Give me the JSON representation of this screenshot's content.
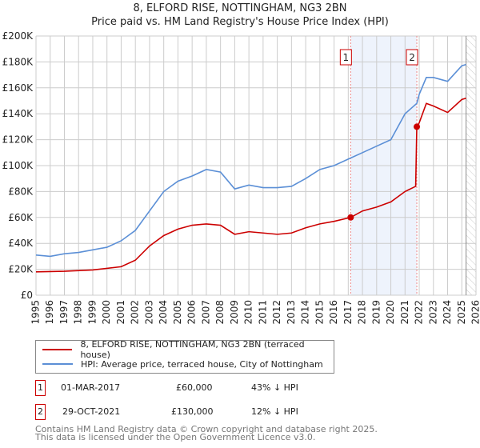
{
  "title_line1": "8, ELFORD RISE, NOTTINGHAM, NG3 2BN",
  "title_line2": "Price paid vs. HM Land Registry's House Price Index (HPI)",
  "chart_data": {
    "type": "line",
    "xlim": [
      1995,
      2026
    ],
    "ylim": [
      0,
      200000
    ],
    "x_ticks": [
      "1995",
      "1996",
      "1997",
      "1998",
      "1999",
      "2000",
      "2001",
      "2002",
      "2003",
      "2004",
      "2005",
      "2006",
      "2007",
      "2008",
      "2009",
      "2010",
      "2011",
      "2012",
      "2013",
      "2014",
      "2015",
      "2016",
      "2017",
      "2018",
      "2019",
      "2020",
      "2021",
      "2022",
      "2023",
      "2024",
      "2025",
      "2026"
    ],
    "y_ticks": [
      {
        "v": 0,
        "label": "£0"
      },
      {
        "v": 20000,
        "label": "£20K"
      },
      {
        "v": 40000,
        "label": "£40K"
      },
      {
        "v": 60000,
        "label": "£60K"
      },
      {
        "v": 80000,
        "label": "£80K"
      },
      {
        "v": 100000,
        "label": "£100K"
      },
      {
        "v": 120000,
        "label": "£120K"
      },
      {
        "v": 140000,
        "label": "£140K"
      },
      {
        "v": 160000,
        "label": "£160K"
      },
      {
        "v": 180000,
        "label": "£180K"
      },
      {
        "v": 200000,
        "label": "£200K"
      }
    ],
    "grid": true,
    "series": [
      {
        "name": "8, ELFORD RISE, NOTTINGHAM, NG3 2BN (terraced house)",
        "color": "#cc0000",
        "x": [
          1995,
          1997,
          1999,
          2001,
          2002,
          2003,
          2004,
          2005,
          2006,
          2007,
          2008,
          2009,
          2010,
          2011,
          2012,
          2013,
          2014,
          2015,
          2016,
          2017.17,
          2018,
          2019,
          2020,
          2021,
          2021.75,
          2021.83,
          2022,
          2022.5,
          2023,
          2024,
          2025,
          2025.3
        ],
        "y": [
          18000,
          18500,
          19500,
          22000,
          27000,
          38000,
          46000,
          51000,
          54000,
          55000,
          54000,
          47000,
          49000,
          48000,
          47000,
          48000,
          52000,
          55000,
          57000,
          60000,
          65000,
          68000,
          72000,
          80000,
          84000,
          130000,
          133000,
          148000,
          146000,
          141000,
          151000,
          152000
        ]
      },
      {
        "name": "HPI: Average price, terraced house, City of Nottingham",
        "color": "#5b8fd6",
        "x": [
          1995,
          1996,
          1997,
          1998,
          1999,
          2000,
          2001,
          2002,
          2003,
          2004,
          2005,
          2006,
          2007,
          2008,
          2009,
          2010,
          2011,
          2012,
          2013,
          2014,
          2015,
          2016,
          2017,
          2018,
          2019,
          2020,
          2021,
          2021.83,
          2022,
          2022.5,
          2023,
          2024,
          2025,
          2025.3
        ],
        "y": [
          31000,
          30000,
          32000,
          33000,
          35000,
          37000,
          42000,
          50000,
          65000,
          80000,
          88000,
          92000,
          97000,
          95000,
          82000,
          85000,
          83000,
          83000,
          84000,
          90000,
          97000,
          100000,
          105000,
          110000,
          115000,
          120000,
          140000,
          148000,
          155000,
          168000,
          168000,
          165000,
          177000,
          178000
        ]
      }
    ],
    "sales": [
      {
        "label": "1",
        "x": 2017.17,
        "y": 60000
      },
      {
        "label": "2",
        "x": 2021.83,
        "y": 130000
      }
    ],
    "hatch_from": 2025.3
  },
  "legend": {
    "red": "8, ELFORD RISE, NOTTINGHAM, NG3 2BN (terraced house)",
    "blue": "HPI: Average price, terraced house, City of Nottingham"
  },
  "transactions": [
    {
      "num": "1",
      "date": "01-MAR-2017",
      "price": "£60,000",
      "hpi": "43% ↓ HPI"
    },
    {
      "num": "2",
      "date": "29-OCT-2021",
      "price": "£130,000",
      "hpi": "12% ↓ HPI"
    }
  ],
  "footer": {
    "line1": "Contains HM Land Registry data © Crown copyright and database right 2025.",
    "line2": "This data is licensed under the Open Government Licence v3.0."
  }
}
